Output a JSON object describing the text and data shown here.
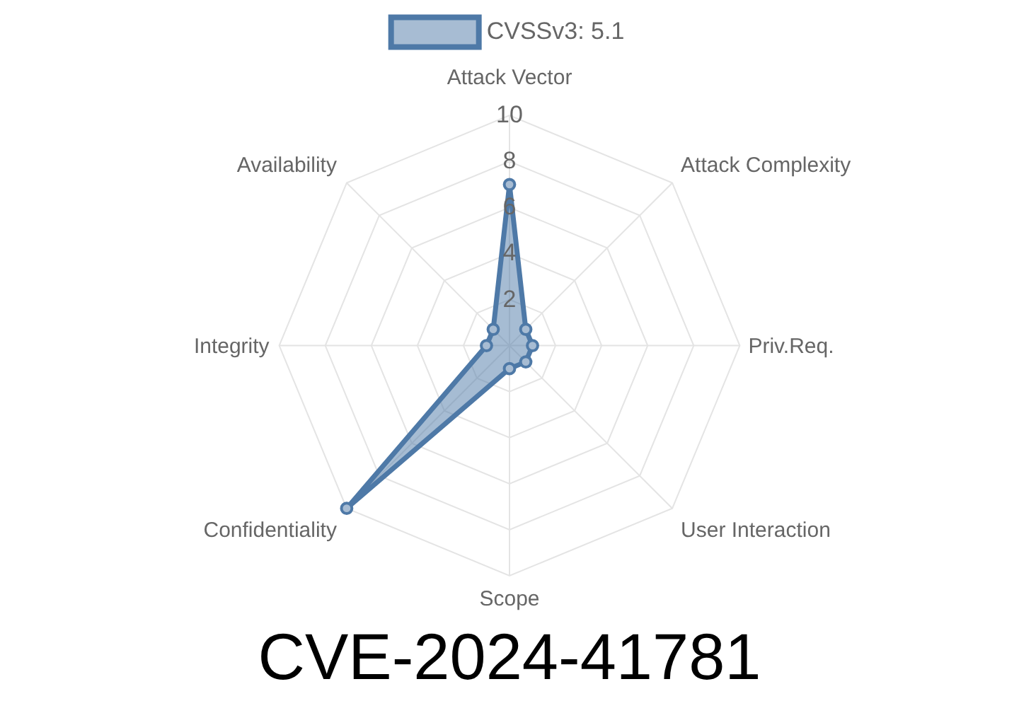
{
  "chart_data": {
    "type": "radar",
    "title": "CVE-2024-41781",
    "categories": [
      "Attack Vector",
      "Attack Complexity",
      "Priv.Req.",
      "User Interaction",
      "Scope",
      "Confidentiality",
      "Integrity",
      "Availability"
    ],
    "series": [
      {
        "name": "CVSSv3: 5.1",
        "color": "#4e79a7",
        "values": [
          7,
          1,
          1,
          1,
          1,
          10,
          1,
          1
        ]
      }
    ],
    "ylim": [
      0,
      10
    ],
    "yticks": [
      2,
      4,
      6,
      8,
      10
    ],
    "grid": true,
    "legend": "top",
    "marker": "circle"
  }
}
